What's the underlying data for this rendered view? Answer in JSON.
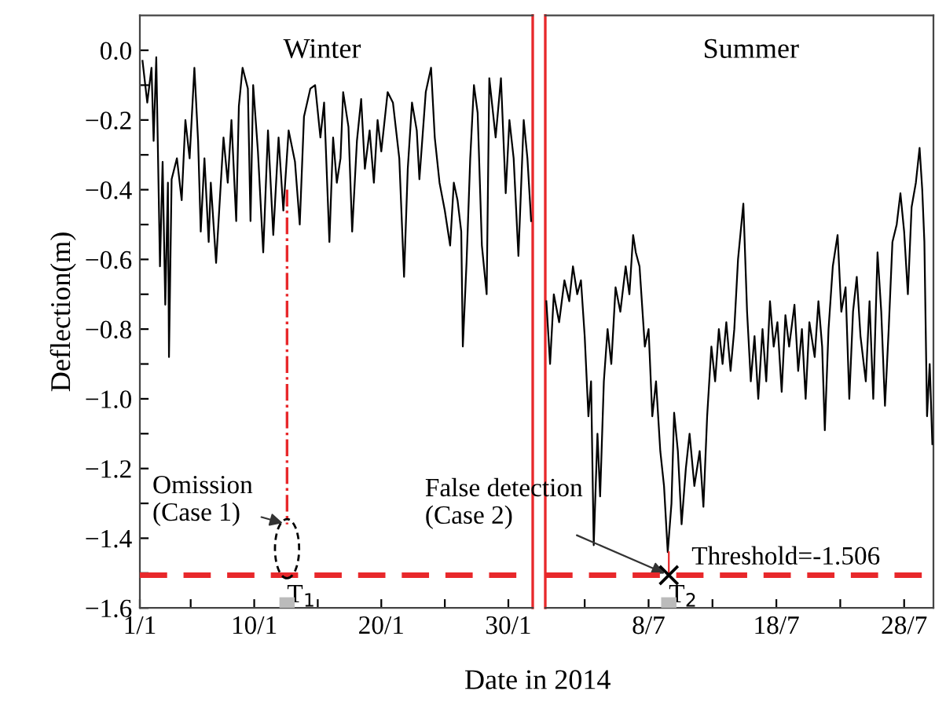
{
  "chart_data": [
    {
      "type": "line",
      "xlabel": "Date in 2014",
      "ylabel": "Deflection(m)",
      "xlim": [
        "2014-01-01T00:00",
        "2014-01-31T22:00"
      ],
      "ylim": [
        -1.6,
        0.1
      ],
      "xticks": [
        {
          "value": "2014-01-01",
          "label": "1/1"
        },
        {
          "value": "2014-01-05",
          "label": null
        },
        {
          "value": "2014-01-10",
          "label": "10/1"
        },
        {
          "value": "2014-01-15",
          "label": null
        },
        {
          "value": "2014-01-20",
          "label": "20/1"
        },
        {
          "value": "2014-01-25",
          "label": null
        },
        {
          "value": "2014-01-30",
          "label": "30/1"
        }
      ],
      "yticks": [
        {
          "value": -1.6,
          "label": "−1.6"
        },
        {
          "value": -1.5,
          "label": null
        },
        {
          "value": -1.4,
          "label": "−1.4"
        },
        {
          "value": -1.3,
          "label": null
        },
        {
          "value": -1.2,
          "label": "−1.2"
        },
        {
          "value": -1.1,
          "label": null
        },
        {
          "value": -1.0,
          "label": "−1.0"
        },
        {
          "value": -0.9,
          "label": null
        },
        {
          "value": -0.8,
          "label": "−0.8"
        },
        {
          "value": -0.7,
          "label": null
        },
        {
          "value": -0.6,
          "label": "−0.6"
        },
        {
          "value": -0.5,
          "label": null
        },
        {
          "value": -0.4,
          "label": "−0.4"
        },
        {
          "value": -0.3,
          "label": null
        },
        {
          "value": -0.2,
          "label": "−0.2"
        },
        {
          "value": -0.1,
          "label": null
        },
        {
          "value": 0.0,
          "label": "0.0"
        }
      ],
      "grid": false,
      "series": [
        {
          "color": "#000000",
          "x": [
            "2014-01-01T05:00",
            "2014-01-01T14:00",
            "2014-01-01T22:00",
            "2014-01-02T02:00",
            "2014-01-02T07:00",
            "2014-01-02T14:00",
            "2014-01-02T19:00",
            "2014-01-03T00:00",
            "2014-01-03T05:00",
            "2014-01-03T07:00",
            "2014-01-03T12:00",
            "2014-01-03T22:00",
            "2014-01-04T07:00",
            "2014-01-04T14:00",
            "2014-01-04T22:00",
            "2014-01-05T07:00",
            "2014-01-05T14:00",
            "2014-01-05T19:00",
            "2014-01-06T02:00",
            "2014-01-06T10:00",
            "2014-01-06T14:00",
            "2014-01-07T00:00",
            "2014-01-07T07:00",
            "2014-01-07T14:00",
            "2014-01-07T22:00",
            "2014-01-08T05:00",
            "2014-01-08T14:00",
            "2014-01-08T19:00",
            "2014-01-09T02:00",
            "2014-01-09T12:00",
            "2014-01-09T17:00",
            "2014-01-09T22:00",
            "2014-01-10T07:00",
            "2014-01-10T17:00",
            "2014-01-11T02:00",
            "2014-01-11T12:00",
            "2014-01-11T22:00",
            "2014-01-12T07:00",
            "2014-01-12T17:00",
            "2014-01-13T05:00",
            "2014-01-13T14:00",
            "2014-01-13T22:00",
            "2014-01-14T10:00",
            "2014-01-14T19:00",
            "2014-01-15T05:00",
            "2014-01-15T12:00",
            "2014-01-15T22:00",
            "2014-01-16T05:00",
            "2014-01-16T12:00",
            "2014-01-16T19:00",
            "2014-01-17T00:00",
            "2014-01-17T10:00",
            "2014-01-17T17:00",
            "2014-01-18T02:00",
            "2014-01-18T10:00",
            "2014-01-18T17:00",
            "2014-01-19T02:00",
            "2014-01-19T10:00",
            "2014-01-19T17:00",
            "2014-01-20T00:00",
            "2014-01-20T12:00",
            "2014-01-20T22:00",
            "2014-01-21T10:00",
            "2014-01-21T19:00",
            "2014-01-22T02:00",
            "2014-01-22T10:00",
            "2014-01-22T19:00",
            "2014-01-23T00:00",
            "2014-01-23T12:00",
            "2014-01-23T22:00",
            "2014-01-24T05:00",
            "2014-01-24T14:00",
            "2014-01-25T00:00",
            "2014-01-25T10:00",
            "2014-01-25T17:00",
            "2014-01-26T00:00",
            "2014-01-26T07:00",
            "2014-01-26T10:00",
            "2014-01-26T17:00",
            "2014-01-27T00:00",
            "2014-01-27T07:00",
            "2014-01-27T14:00",
            "2014-01-27T22:00",
            "2014-01-28T07:00",
            "2014-01-28T12:00",
            "2014-01-29T00:00",
            "2014-01-29T10:00",
            "2014-01-29T19:00",
            "2014-01-30T02:00",
            "2014-01-30T10:00",
            "2014-01-30T19:00",
            "2014-01-31T05:00",
            "2014-01-31T12:00",
            "2014-01-31T19:00"
          ],
          "values": [
            -0.03,
            -0.15,
            -0.05,
            -0.26,
            -0.02,
            -0.62,
            -0.32,
            -0.73,
            -0.38,
            -0.88,
            -0.37,
            -0.31,
            -0.43,
            -0.2,
            -0.31,
            -0.05,
            -0.26,
            -0.52,
            -0.31,
            -0.55,
            -0.38,
            -0.61,
            -0.43,
            -0.25,
            -0.38,
            -0.2,
            -0.49,
            -0.16,
            -0.05,
            -0.11,
            -0.49,
            -0.1,
            -0.29,
            -0.58,
            -0.23,
            -0.53,
            -0.25,
            -0.46,
            -0.23,
            -0.32,
            -0.5,
            -0.19,
            -0.11,
            -0.1,
            -0.25,
            -0.15,
            -0.55,
            -0.25,
            -0.38,
            -0.31,
            -0.12,
            -0.22,
            -0.52,
            -0.26,
            -0.14,
            -0.34,
            -0.23,
            -0.38,
            -0.2,
            -0.29,
            -0.12,
            -0.15,
            -0.31,
            -0.65,
            -0.34,
            -0.15,
            -0.23,
            -0.37,
            -0.12,
            -0.05,
            -0.25,
            -0.38,
            -0.46,
            -0.56,
            -0.38,
            -0.43,
            -0.52,
            -0.85,
            -0.61,
            -0.31,
            -0.1,
            -0.18,
            -0.56,
            -0.7,
            -0.08,
            -0.25,
            -0.08,
            -0.41,
            -0.2,
            -0.31,
            -0.59,
            -0.2,
            -0.31,
            -0.49
          ]
        },
        {
          "color": "#e8282b",
          "line_style": "dashdot",
          "x": [
            "2014-01-12T14:00",
            "2014-01-12T14:00"
          ],
          "values": [
            -0.4,
            -1.36
          ]
        }
      ],
      "ref_lines": [
        {
          "axis": "y",
          "value": -1.506,
          "color": "#e8282b",
          "line_style": "dashed"
        }
      ],
      "annotations": [
        "Winter",
        {
          "text": "Omission\n(Case 1)",
          "x": "2014-01-12T14:00",
          "y": -1.36
        },
        {
          "text": "T$_{1}$",
          "x": "2014-01-12T14:00",
          "y": -1.506
        }
      ]
    },
    {
      "type": "line",
      "tick_labels": "x",
      "xlim": [
        "2014-06-29T22:00",
        "2014-07-30T07:00"
      ],
      "ylim": [
        -1.6,
        0.1
      ],
      "xticks": [
        {
          "value": "2014-07-03",
          "label": null
        },
        {
          "value": "2014-07-08",
          "label": "8/7"
        },
        {
          "value": "2014-07-13",
          "label": null
        },
        {
          "value": "2014-07-18",
          "label": "18/7"
        },
        {
          "value": "2014-07-23",
          "label": null
        },
        {
          "value": "2014-07-28",
          "label": "28/7"
        }
      ],
      "grid": false,
      "series": [
        {
          "color": "#000000",
          "x": [
            "2014-06-30T00:00",
            "2014-06-30T07:00",
            "2014-06-30T14:00",
            "2014-07-01T00:00",
            "2014-07-01T10:00",
            "2014-07-01T19:00",
            "2014-07-02T02:00",
            "2014-07-02T10:00",
            "2014-07-02T17:00",
            "2014-07-03T00:00",
            "2014-07-03T07:00",
            "2014-07-03T12:00",
            "2014-07-03T17:00",
            "2014-07-04T00:00",
            "2014-07-04T05:00",
            "2014-07-04T12:00",
            "2014-07-04T19:00",
            "2014-07-05T02:00",
            "2014-07-05T10:00",
            "2014-07-05T19:00",
            "2014-07-06T05:00",
            "2014-07-06T12:00",
            "2014-07-06T19:00",
            "2014-07-07T00:00",
            "2014-07-07T07:00",
            "2014-07-07T17:00",
            "2014-07-08T00:00",
            "2014-07-08T07:00",
            "2014-07-08T14:00",
            "2014-07-08T22:00",
            "2014-07-09T05:00",
            "2014-07-09T12:00",
            "2014-07-09T19:00",
            "2014-07-10T00:00",
            "2014-07-10T07:00",
            "2014-07-10T14:00",
            "2014-07-10T22:00",
            "2014-07-11T05:00",
            "2014-07-11T14:00",
            "2014-07-12T00:00",
            "2014-07-12T07:00",
            "2014-07-12T14:00",
            "2014-07-12T22:00",
            "2014-07-13T05:00",
            "2014-07-13T12:00",
            "2014-07-13T19:00",
            "2014-07-14T02:00",
            "2014-07-14T10:00",
            "2014-07-14T17:00",
            "2014-07-15T00:00",
            "2014-07-15T10:00",
            "2014-07-15T17:00",
            "2014-07-16T00:00",
            "2014-07-16T07:00",
            "2014-07-16T14:00",
            "2014-07-16T22:00",
            "2014-07-17T05:00",
            "2014-07-17T12:00",
            "2014-07-17T19:00",
            "2014-07-18T02:00",
            "2014-07-18T10:00",
            "2014-07-18T17:00",
            "2014-07-19T00:00",
            "2014-07-19T10:00",
            "2014-07-19T17:00",
            "2014-07-20T00:00",
            "2014-07-20T07:00",
            "2014-07-20T14:00",
            "2014-07-21T00:00",
            "2014-07-21T07:00",
            "2014-07-21T14:00",
            "2014-07-21T19:00",
            "2014-07-22T02:00",
            "2014-07-22T10:00",
            "2014-07-22T19:00",
            "2014-07-23T02:00",
            "2014-07-23T10:00",
            "2014-07-23T17:00",
            "2014-07-24T00:00",
            "2014-07-24T07:00",
            "2014-07-24T14:00",
            "2014-07-25T00:00",
            "2014-07-25T07:00",
            "2014-07-25T14:00",
            "2014-07-25T22:00",
            "2014-07-26T05:00",
            "2014-07-26T12:00",
            "2014-07-26T19:00",
            "2014-07-27T02:00",
            "2014-07-27T10:00",
            "2014-07-27T17:00",
            "2014-07-28T00:00",
            "2014-07-28T07:00",
            "2014-07-28T14:00",
            "2014-07-28T22:00",
            "2014-07-29T05:00",
            "2014-07-29T10:00",
            "2014-07-29T14:00",
            "2014-07-29T19:00",
            "2014-07-30T00:00",
            "2014-07-30T05:00"
          ],
          "values": [
            -0.72,
            -0.9,
            -0.7,
            -0.78,
            -0.66,
            -0.72,
            -0.62,
            -0.7,
            -0.66,
            -0.82,
            -1.05,
            -0.95,
            -1.42,
            -1.1,
            -1.28,
            -0.95,
            -0.8,
            -0.9,
            -0.68,
            -0.75,
            -0.62,
            -0.7,
            -0.53,
            -0.58,
            -0.62,
            -0.85,
            -0.8,
            -1.05,
            -0.95,
            -1.15,
            -1.25,
            -1.44,
            -1.3,
            -1.04,
            -1.15,
            -1.36,
            -1.2,
            -1.1,
            -1.25,
            -1.15,
            -1.31,
            -1.05,
            -0.85,
            -0.95,
            -0.8,
            -0.9,
            -0.78,
            -0.92,
            -0.8,
            -0.6,
            -0.44,
            -0.75,
            -0.95,
            -0.82,
            -1.0,
            -0.8,
            -0.95,
            -0.72,
            -0.85,
            -0.78,
            -0.98,
            -0.76,
            -0.85,
            -0.73,
            -0.92,
            -0.8,
            -1.0,
            -0.78,
            -0.88,
            -0.72,
            -0.85,
            -1.09,
            -0.8,
            -0.62,
            -0.53,
            -0.75,
            -0.68,
            -1.0,
            -0.75,
            -0.65,
            -0.82,
            -0.95,
            -0.72,
            -1.0,
            -0.58,
            -0.75,
            -1.02,
            -0.8,
            -0.55,
            -0.5,
            -0.41,
            -0.52,
            -0.7,
            -0.45,
            -0.38,
            -0.28,
            -0.4,
            -0.55,
            -1.05,
            -0.9,
            -1.13
          ]
        },
        {
          "color": "#e8282b",
          "x": [
            "2014-07-09T14:00",
            "2014-07-09T14:00"
          ],
          "values": [
            -1.44,
            -1.506
          ]
        },
        {
          "type": "scatter",
          "color": "#000000",
          "marker": "cross",
          "x": [
            "2014-07-09T14:00"
          ],
          "values": [
            -1.506
          ]
        }
      ],
      "ref_lines": [
        {
          "axis": "y",
          "value": -1.506,
          "label": "Threshold=-1.506",
          "color": "#e8282b",
          "line_style": "dashed"
        }
      ],
      "annotations": [
        "Summer",
        {
          "text": "False detection\n(Case 2)",
          "x": "2014-07-09T14:00",
          "y": -1.506
        },
        {
          "text": "T$_{2}$",
          "x": "2014-07-09T14:00",
          "y": -1.506
        }
      ]
    }
  ]
}
